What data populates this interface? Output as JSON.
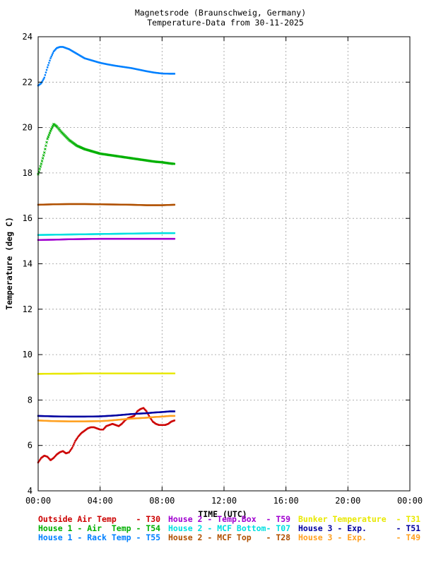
{
  "chart_data": {
    "type": "scatter",
    "title": "Magnetsrode (Braunschweig, Germany)",
    "subtitle": "Temperature-Data from 30-11-2025",
    "xlabel": "TIME (UTC)",
    "ylabel": "Temperature (deg C)",
    "xlim": [
      0,
      24
    ],
    "ylim": [
      4,
      24
    ],
    "grid": true,
    "legend_position": "bottom",
    "x_ticks": [
      {
        "value": 0,
        "label": "00:00"
      },
      {
        "value": 4,
        "label": "04:00"
      },
      {
        "value": 8,
        "label": "08:00"
      },
      {
        "value": 12,
        "label": "12:00"
      },
      {
        "value": 16,
        "label": "16:00"
      },
      {
        "value": 20,
        "label": "20:00"
      },
      {
        "value": 24,
        "label": "00:00"
      }
    ],
    "y_ticks": [
      {
        "value": 4,
        "label": "4"
      },
      {
        "value": 6,
        "label": "6"
      },
      {
        "value": 8,
        "label": "8"
      },
      {
        "value": 10,
        "label": "10"
      },
      {
        "value": 12,
        "label": "12"
      },
      {
        "value": 14,
        "label": "14"
      },
      {
        "value": 16,
        "label": "16"
      },
      {
        "value": 18,
        "label": "18"
      },
      {
        "value": 20,
        "label": "20"
      },
      {
        "value": 22,
        "label": "22"
      },
      {
        "value": 24,
        "label": "24"
      }
    ],
    "series": [
      {
        "name": "Outside Air Temp",
        "code": "T30",
        "color": "#cc0000",
        "marker": "dot",
        "x": [
          0.0,
          0.2,
          0.4,
          0.6,
          0.8,
          1.0,
          1.2,
          1.4,
          1.6,
          1.8,
          2.0,
          2.2,
          2.4,
          2.6,
          2.8,
          3.0,
          3.2,
          3.4,
          3.6,
          3.8,
          4.0,
          4.2,
          4.4,
          4.6,
          4.8,
          5.0,
          5.2,
          5.4,
          5.6,
          5.8,
          6.0,
          6.2,
          6.4,
          6.6,
          6.8,
          7.0,
          7.2,
          7.4,
          7.6,
          7.8,
          8.0,
          8.2,
          8.4,
          8.6,
          8.8
        ],
        "y": [
          5.25,
          5.45,
          5.55,
          5.5,
          5.35,
          5.45,
          5.6,
          5.7,
          5.75,
          5.65,
          5.7,
          5.9,
          6.2,
          6.4,
          6.55,
          6.65,
          6.75,
          6.8,
          6.8,
          6.75,
          6.7,
          6.7,
          6.85,
          6.9,
          6.95,
          6.9,
          6.85,
          6.95,
          7.1,
          7.2,
          7.25,
          7.3,
          7.5,
          7.6,
          7.65,
          7.5,
          7.25,
          7.05,
          6.95,
          6.9,
          6.9,
          6.9,
          6.95,
          7.05,
          7.1
        ]
      },
      {
        "name": "House 1 - Air  Temp",
        "code": "T54",
        "color": "#00b000",
        "marker": "x",
        "x": [
          0.0,
          0.2,
          0.4,
          0.6,
          0.8,
          1.0,
          1.2,
          1.5,
          2.0,
          2.5,
          3.0,
          3.5,
          4.0,
          4.5,
          5.0,
          5.5,
          6.0,
          6.5,
          7.0,
          7.5,
          8.0,
          8.5,
          8.8
        ],
        "y": [
          17.95,
          18.4,
          18.9,
          19.5,
          19.85,
          20.15,
          20.05,
          19.8,
          19.45,
          19.2,
          19.05,
          18.95,
          18.85,
          18.8,
          18.75,
          18.7,
          18.65,
          18.6,
          18.55,
          18.5,
          18.47,
          18.42,
          18.4
        ]
      },
      {
        "name": "House 1 - Rack Temp",
        "code": "T55",
        "color": "#0080ff",
        "marker": "dot",
        "x": [
          0.0,
          0.2,
          0.4,
          0.6,
          0.8,
          1.0,
          1.2,
          1.4,
          1.6,
          2.0,
          2.5,
          3.0,
          3.5,
          4.0,
          4.5,
          5.0,
          5.5,
          6.0,
          6.5,
          7.0,
          7.5,
          8.0,
          8.5,
          8.8
        ],
        "y": [
          21.85,
          21.95,
          22.2,
          22.65,
          23.05,
          23.35,
          23.5,
          23.55,
          23.55,
          23.45,
          23.25,
          23.05,
          22.95,
          22.85,
          22.78,
          22.72,
          22.67,
          22.62,
          22.55,
          22.48,
          22.42,
          22.38,
          22.37,
          22.37
        ]
      },
      {
        "name": "House 2 - Temp.Box",
        "code": "T59",
        "color": "#a000d0",
        "marker": "dot",
        "x": [
          0.0,
          1.0,
          2.0,
          3.0,
          4.0,
          5.0,
          6.0,
          7.0,
          8.0,
          8.8
        ],
        "y": [
          15.05,
          15.06,
          15.08,
          15.09,
          15.1,
          15.1,
          15.1,
          15.1,
          15.1,
          15.1
        ]
      },
      {
        "name": "House 2 - MCF Bottom",
        "code": "T07",
        "color": "#00e0e0",
        "marker": "dot",
        "x": [
          0.0,
          1.0,
          2.0,
          3.0,
          4.0,
          5.0,
          6.0,
          7.0,
          8.0,
          8.8
        ],
        "y": [
          15.27,
          15.28,
          15.29,
          15.3,
          15.31,
          15.32,
          15.33,
          15.34,
          15.35,
          15.35
        ]
      },
      {
        "name": "House 2 - MCF Top",
        "code": "T28",
        "color": "#b05000",
        "marker": "dot",
        "x": [
          0.0,
          1.0,
          2.0,
          3.0,
          4.0,
          5.0,
          6.0,
          7.0,
          8.0,
          8.8
        ],
        "y": [
          16.6,
          16.62,
          16.63,
          16.63,
          16.62,
          16.61,
          16.6,
          16.58,
          16.58,
          16.6
        ]
      },
      {
        "name": "Bunker Temperature",
        "code": "T31",
        "color": "#e8e800",
        "marker": "dot",
        "x": [
          0.0,
          1.0,
          2.0,
          3.0,
          4.0,
          5.0,
          6.0,
          7.0,
          8.0,
          8.8
        ],
        "y": [
          9.15,
          9.16,
          9.16,
          9.17,
          9.17,
          9.17,
          9.17,
          9.17,
          9.17,
          9.17
        ]
      },
      {
        "name": "House 3 - Exp.",
        "code": "T51",
        "color": "#0000a0",
        "marker": "dot",
        "x": [
          0.0,
          1.0,
          2.0,
          3.0,
          4.0,
          4.5,
          5.0,
          5.5,
          6.0,
          6.5,
          7.0,
          7.5,
          8.0,
          8.5,
          8.8
        ],
        "y": [
          7.3,
          7.28,
          7.27,
          7.27,
          7.28,
          7.3,
          7.32,
          7.35,
          7.38,
          7.4,
          7.42,
          7.45,
          7.47,
          7.5,
          7.5
        ]
      },
      {
        "name": "House 3 - Exp.",
        "code": "T49",
        "color": "#ffa020",
        "marker": "dot",
        "x": [
          0.0,
          1.0,
          2.0,
          3.0,
          4.0,
          4.5,
          5.0,
          5.5,
          6.0,
          6.5,
          7.0,
          7.5,
          8.0,
          8.5,
          8.8
        ],
        "y": [
          7.1,
          7.07,
          7.06,
          7.06,
          7.07,
          7.09,
          7.12,
          7.15,
          7.18,
          7.2,
          7.22,
          7.25,
          7.27,
          7.3,
          7.3
        ]
      }
    ],
    "legend": [
      {
        "text": "Outside Air Temp    - T30",
        "color": "#cc0000"
      },
      {
        "text": "House 2 - Temp.Box  - T59",
        "color": "#a000d0"
      },
      {
        "text": "Bunker Temperature  - T31",
        "color": "#e8e800"
      },
      {
        "text": "House 1 - Air  Temp - T54",
        "color": "#00b000"
      },
      {
        "text": "House 2 - MCF Bottom- T07",
        "color": "#00e0e0"
      },
      {
        "text": "House 3 - Exp.      - T51",
        "color": "#0000a0"
      },
      {
        "text": "House 1 - Rack Temp - T55",
        "color": "#0080ff"
      },
      {
        "text": "House 2 - MCF Top   - T28",
        "color": "#b05000"
      },
      {
        "text": "House 3 - Exp.      - T49",
        "color": "#ffa020"
      }
    ]
  }
}
